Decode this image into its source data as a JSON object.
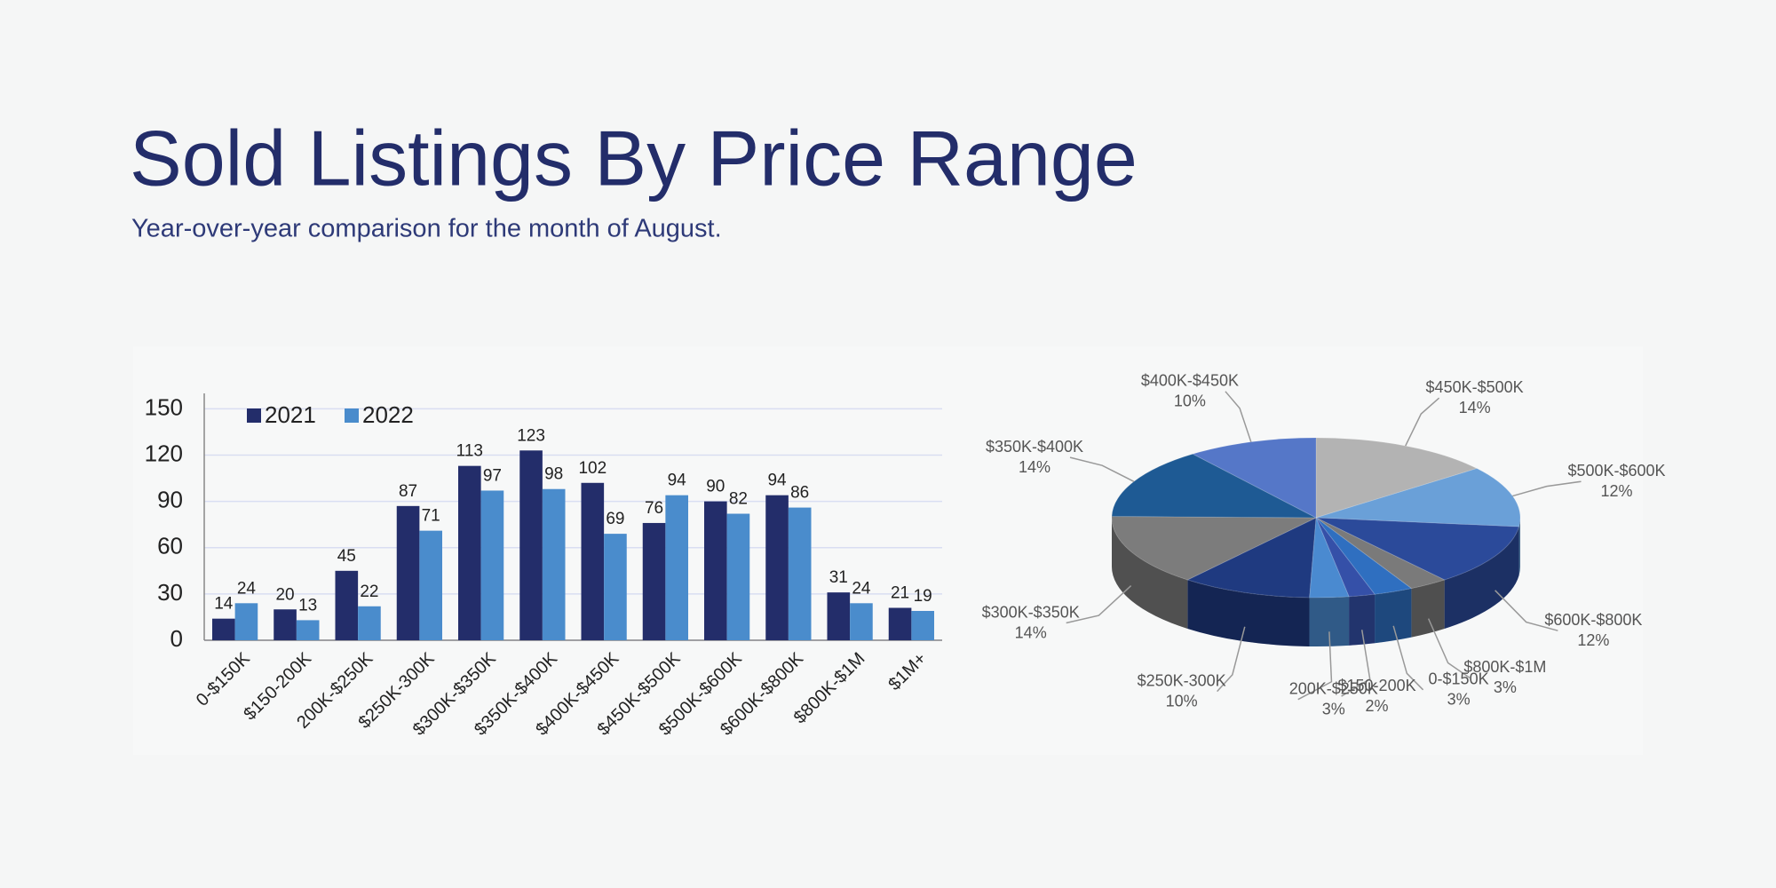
{
  "title": "Sold Listings By Price Range",
  "subtitle": "Year-over-year comparison for the month of August.",
  "chart_data": [
    {
      "type": "bar",
      "categories": [
        "0-$150K",
        "$150-200K",
        "200K-$250K",
        "$250K-300K",
        "$300K-$350K",
        "$350K-$400K",
        "$400K-$450K",
        "$450K-$500K",
        "$500K-$600K",
        "$600K-$800K",
        "$800K-$1M",
        "$1M+"
      ],
      "series": [
        {
          "name": "2021",
          "color": "#232d6a",
          "values": [
            14,
            20,
            45,
            87,
            113,
            123,
            102,
            76,
            90,
            94,
            31,
            21
          ]
        },
        {
          "name": "2022",
          "color": "#4a8ccc",
          "values": [
            24,
            13,
            22,
            71,
            97,
            98,
            69,
            94,
            82,
            86,
            24,
            19
          ]
        }
      ],
      "ylim": [
        0,
        160
      ],
      "yticks": [
        0,
        30,
        60,
        90,
        120,
        150
      ],
      "grid": true,
      "legend": "top-left"
    },
    {
      "type": "pie",
      "categories": [
        "$450K-$500K",
        "$500K-$600K",
        "$600K-$800K",
        "$800K-$1M",
        "0-$150K",
        "$150-200K",
        "200K-$250K",
        "$250K-300K",
        "$300K-$350K",
        "$350K-$400K",
        "$400K-$450K"
      ],
      "values": [
        14,
        12,
        12,
        3,
        3,
        2,
        3,
        10,
        14,
        14,
        10
      ],
      "value_labels": [
        "14%",
        "12%",
        "12%",
        "3%",
        "3%",
        "2%",
        "3%",
        "10%",
        "14%",
        "14%",
        "10%"
      ],
      "colors": [
        "#b3b3b3",
        "#6aa0d8",
        "#2b4a9a",
        "#7a7a7a",
        "#2f6fc0",
        "#3550a8",
        "#4a8ad0",
        "#1f3a80",
        "#7c7c7c",
        "#1e5a94",
        "#5577c8"
      ]
    }
  ]
}
